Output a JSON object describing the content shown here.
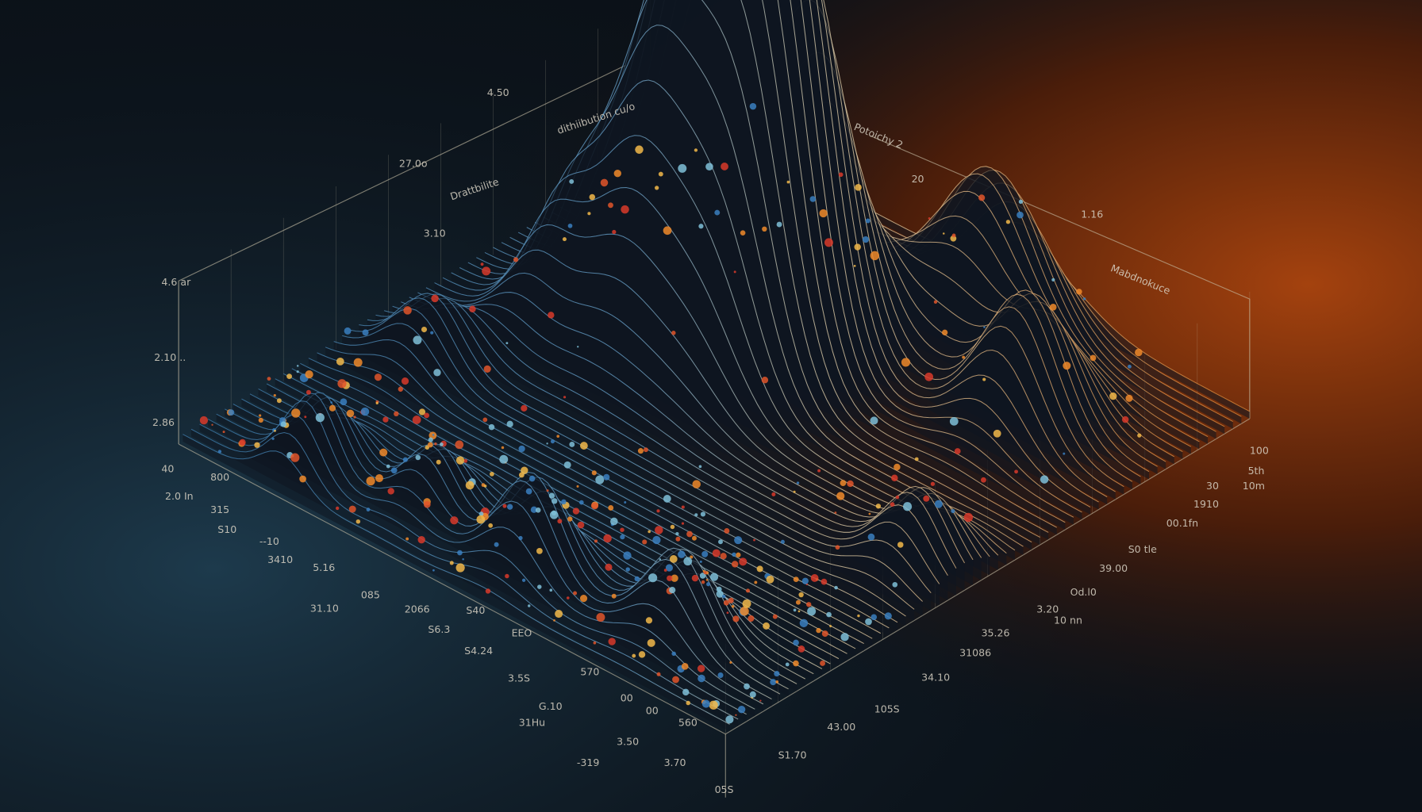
{
  "labels": {
    "top": [
      "4.50",
      "dithiibution cu/o",
      "27.0o",
      "Drattbilite",
      "3.10",
      "Potoichy 2",
      "20",
      "1.16",
      "Mabdnokuce"
    ],
    "left": [
      "4.6 ar",
      "2.10 ..",
      "2.86",
      "40",
      "2.0 In"
    ],
    "front_left": [
      "800",
      "315",
      "S10",
      "--10",
      "3410",
      "5.16",
      "085",
      "31.10",
      "2066",
      "S40",
      "S6.3",
      "S4.24",
      "EEO",
      "3.5S",
      "570",
      "G.10",
      "00",
      "00",
      "31Hu",
      "560",
      "3.50",
      "3.70",
      "-319",
      "05S"
    ],
    "front_right": [
      "100",
      "5th",
      "10m",
      "30",
      "1910",
      "00.1fn",
      "S0 tle",
      "39.00",
      "Od.l0",
      "3.20",
      "10 nn",
      "35.26",
      "31086",
      "34.10",
      "105S",
      "43.00",
      "S1.70"
    ]
  }
}
